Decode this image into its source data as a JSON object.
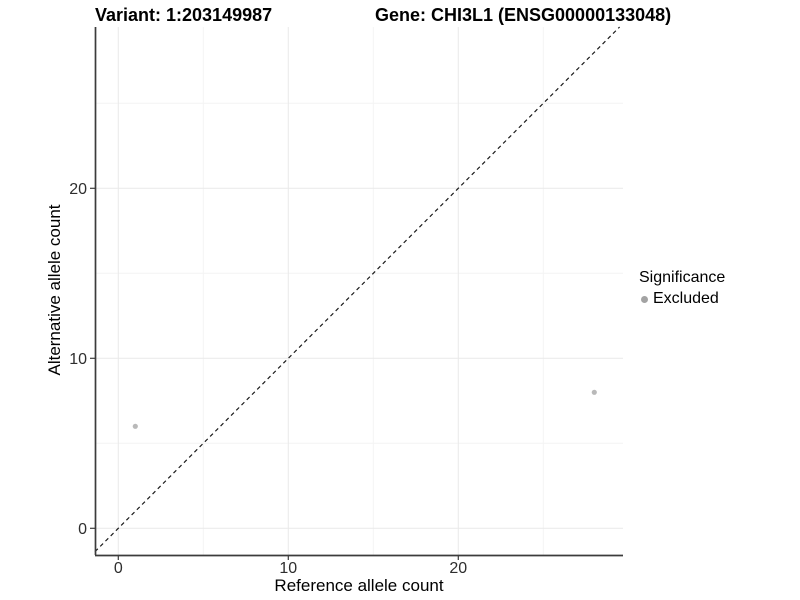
{
  "chart_data": {
    "type": "scatter",
    "title_left": "Variant: 1:203149987",
    "title_right": "Gene: CHI3L1 (ENSG00000133048)",
    "xlabel": "Reference allele count",
    "ylabel": "Alternative allele count",
    "xlim": [
      -1.4,
      29.5
    ],
    "ylim": [
      -1.4,
      29.5
    ],
    "x_ticks": [
      0,
      10,
      20
    ],
    "y_ticks": [
      0,
      10,
      20
    ],
    "x_minor_gridlines": [
      5,
      15,
      25
    ],
    "y_minor_gridlines": [
      5,
      15,
      25
    ],
    "grid": "major-and-minor",
    "identity_line": {
      "type": "y=x",
      "style": "dashed",
      "color": "#1a1a1a"
    },
    "series": [
      {
        "name": "Excluded",
        "marker_color": "#b9b9b9",
        "points": [
          [
            1,
            6
          ],
          [
            28,
            8
          ]
        ]
      }
    ],
    "legend": {
      "position": "right",
      "title": "Significance",
      "items": [
        {
          "label": "Excluded",
          "marker_color": "#a3a3a3"
        }
      ]
    },
    "colors": {
      "grid_major": "#e9e9e9",
      "grid_minor": "#f4f4f4",
      "axis_line": "#3c3c3c",
      "tick_label": "#2e2e2e"
    }
  }
}
